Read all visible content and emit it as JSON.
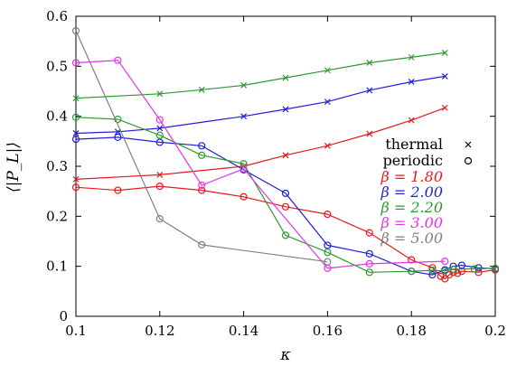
{
  "chart_data": {
    "type": "line",
    "xlabel": "κ",
    "ylabel": "⟨|P_L|⟩",
    "xlim": [
      0.1,
      0.2
    ],
    "ylim": [
      0,
      0.6
    ],
    "xticks": [
      "0.1",
      "0.12",
      "0.14",
      "0.16",
      "0.18",
      "0.2"
    ],
    "yticks": [
      "0",
      "0.1",
      "0.2",
      "0.3",
      "0.4",
      "0.5",
      "0.6"
    ],
    "legend_position": "right",
    "legend_markers": [
      {
        "label": "thermal",
        "marker": "×"
      },
      {
        "label": "periodic",
        "marker": "○"
      }
    ],
    "series": [
      {
        "name": "β = 1.80",
        "color": "#e41a1c",
        "marker": "x",
        "x": [
          0.1,
          0.12,
          0.14,
          0.15,
          0.16,
          0.17,
          0.18,
          0.188
        ],
        "y": [
          0.274,
          0.283,
          0.3,
          0.322,
          0.341,
          0.365,
          0.392,
          0.417
        ]
      },
      {
        "name": "β = 1.80",
        "color": "#e41a1c",
        "marker": "o",
        "x": [
          0.1,
          0.11,
          0.12,
          0.13,
          0.14,
          0.15,
          0.16,
          0.17,
          0.18,
          0.185,
          0.187,
          0.188,
          0.189,
          0.19,
          0.191,
          0.192,
          0.196,
          0.2
        ],
        "y": [
          0.258,
          0.252,
          0.26,
          0.252,
          0.239,
          0.219,
          0.204,
          0.167,
          0.113,
          0.097,
          0.08,
          0.075,
          0.083,
          0.088,
          0.086,
          0.09,
          0.088,
          0.093
        ]
      },
      {
        "name": "β = 2.00",
        "color": "#1f1fe0",
        "marker": "x",
        "x": [
          0.1,
          0.11,
          0.12,
          0.14,
          0.15,
          0.16,
          0.17,
          0.18,
          0.188
        ],
        "y": [
          0.366,
          0.369,
          0.376,
          0.4,
          0.414,
          0.429,
          0.452,
          0.469,
          0.48
        ]
      },
      {
        "name": "β = 2.00",
        "color": "#1f1fe0",
        "marker": "o",
        "x": [
          0.1,
          0.11,
          0.12,
          0.13,
          0.14,
          0.15,
          0.16,
          0.17,
          0.18,
          0.185,
          0.188,
          0.19,
          0.192,
          0.196,
          0.2
        ],
        "y": [
          0.354,
          0.358,
          0.348,
          0.341,
          0.293,
          0.246,
          0.142,
          0.125,
          0.09,
          0.083,
          0.093,
          0.1,
          0.102,
          0.097,
          0.095
        ]
      },
      {
        "name": "β = 2.20",
        "color": "#2e9a2e",
        "marker": "x",
        "x": [
          0.1,
          0.12,
          0.13,
          0.14,
          0.15,
          0.16,
          0.17,
          0.18,
          0.188
        ],
        "y": [
          0.436,
          0.445,
          0.453,
          0.462,
          0.477,
          0.492,
          0.507,
          0.518,
          0.527
        ]
      },
      {
        "name": "β = 2.20",
        "color": "#2e9a2e",
        "marker": "o",
        "x": [
          0.1,
          0.11,
          0.12,
          0.13,
          0.14,
          0.15,
          0.16,
          0.17,
          0.18,
          0.185,
          0.188,
          0.19,
          0.195,
          0.2
        ],
        "y": [
          0.398,
          0.394,
          0.362,
          0.322,
          0.305,
          0.162,
          0.128,
          0.088,
          0.09,
          0.092,
          0.091,
          0.094,
          0.095,
          0.096
        ]
      },
      {
        "name": "β = 3.00",
        "color": "#e632e6",
        "marker": "o",
        "x": [
          0.1,
          0.11,
          0.12,
          0.13,
          0.14,
          0.16,
          0.17,
          0.188
        ],
        "y": [
          0.507,
          0.512,
          0.393,
          0.262,
          0.295,
          0.096,
          0.105,
          0.11
        ]
      },
      {
        "name": "β = 5.00",
        "color": "#808080",
        "marker": "o",
        "x": [
          0.1,
          0.12,
          0.13,
          0.16
        ],
        "y": [
          0.571,
          0.195,
          0.143,
          0.109
        ]
      }
    ],
    "legend_entries": [
      "β = 1.80",
      "β = 2.00",
      "β = 2.20",
      "β = 3.00",
      "β = 5.00"
    ]
  }
}
